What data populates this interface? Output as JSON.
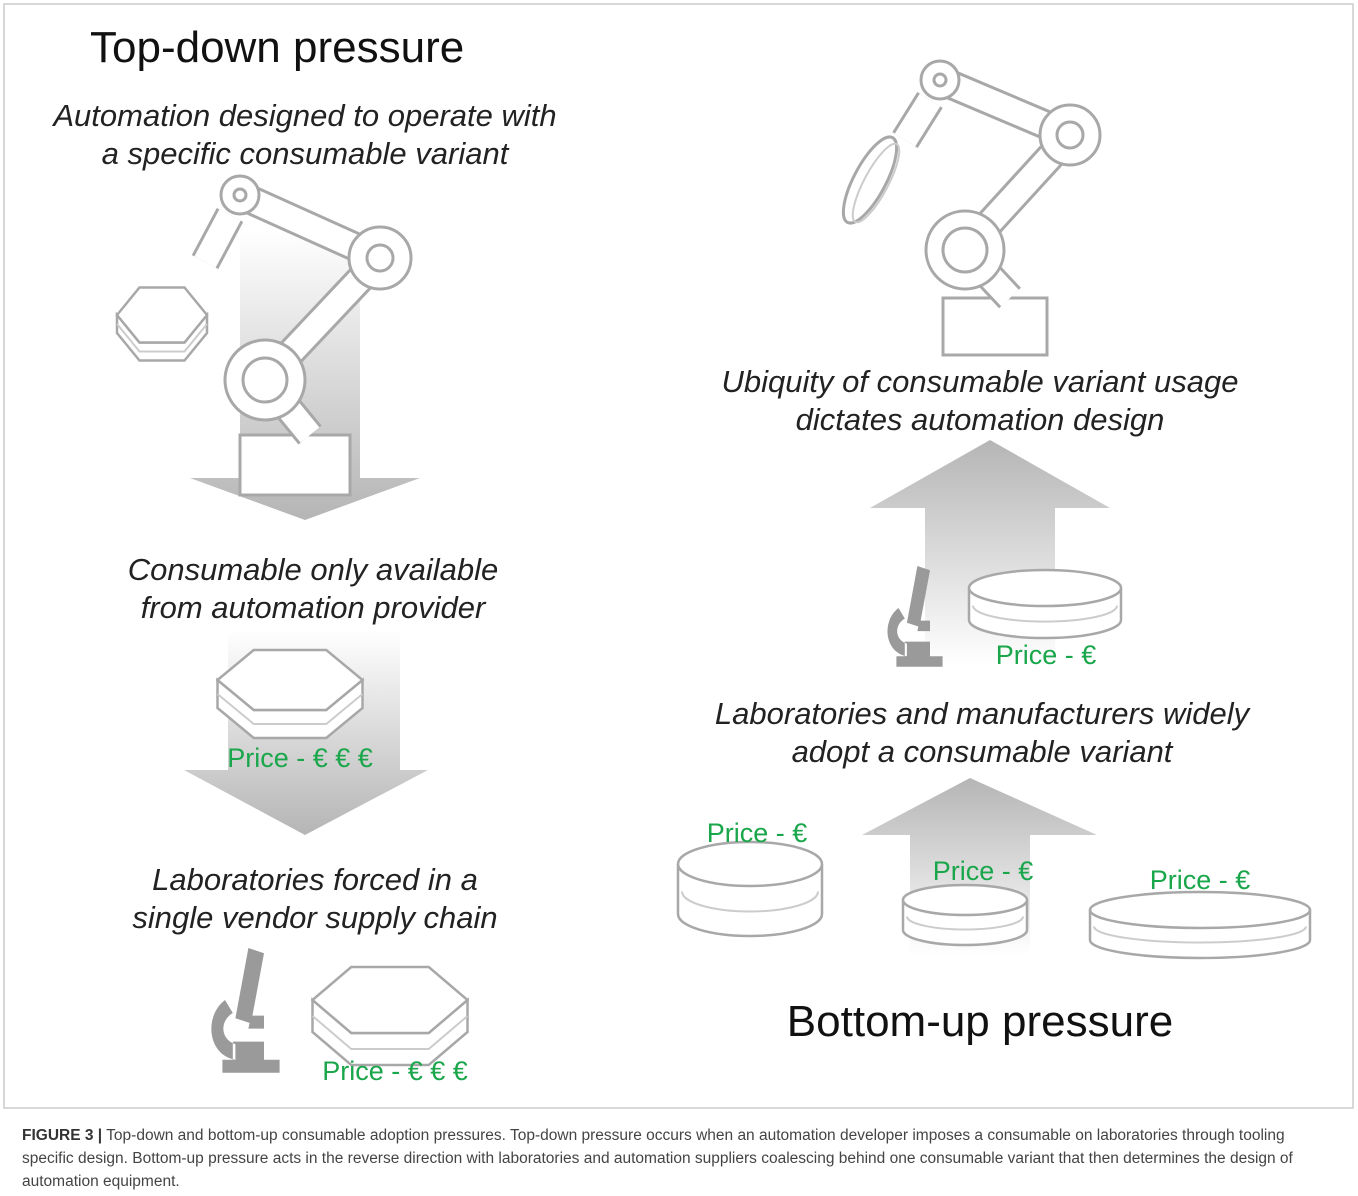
{
  "left": {
    "title": "Top-down pressure",
    "top_label": [
      "Automation designed to operate with",
      "a specific consumable variant"
    ],
    "middle_label": [
      "Consumable only available",
      "from automation provider"
    ],
    "middle_price": "Price - € € €",
    "bottom_label": [
      "Laboratories forced in a",
      "single vendor supply chain"
    ],
    "bottom_price": "Price - € € €"
  },
  "right": {
    "title": "Bottom-up pressure",
    "top_label": [
      "Ubiquity of consumable variant usage",
      "dictates automation design"
    ],
    "middle_price": "Price - €",
    "middle_label": [
      "Laboratories and manufacturers widely",
      "adopt a consumable variant"
    ],
    "dish_prices": [
      "Price - €",
      "Price - €",
      "Price - €"
    ]
  },
  "caption": {
    "label": "FIGURE 3 |",
    "text": "Top-down and bottom-up consumable adoption pressures. Top-down pressure occurs when an automation developer imposes a consumable on laboratories through tooling specific design. Bottom-up pressure acts in the reverse direction with laboratories and automation suppliers coalescing behind one consumable variant that then determines the design of automation equipment."
  }
}
